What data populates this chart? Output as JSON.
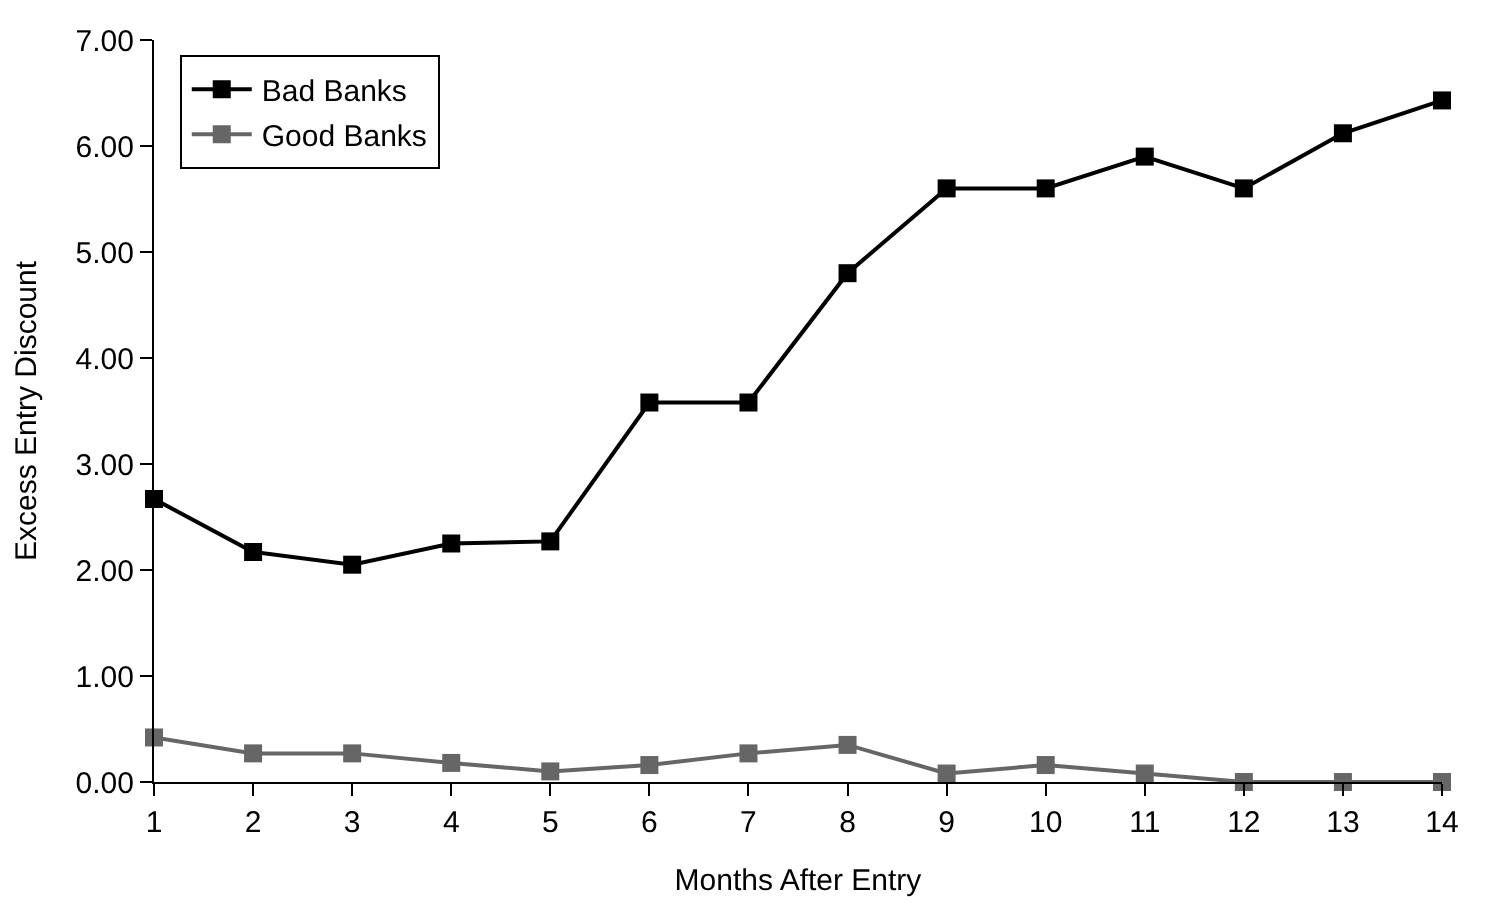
{
  "chart_data": {
    "type": "line",
    "xlabel": "Months After Entry",
    "ylabel": "Excess Entry Discount",
    "x": [
      1,
      2,
      3,
      4,
      5,
      6,
      7,
      8,
      9,
      10,
      11,
      12,
      13,
      14
    ],
    "series": [
      {
        "name": "Bad Banks",
        "color": "#000000",
        "values": [
          2.67,
          2.17,
          2.05,
          2.25,
          2.27,
          3.58,
          3.58,
          4.8,
          5.6,
          5.6,
          5.9,
          5.6,
          6.12,
          6.43
        ]
      },
      {
        "name": "Good Banks",
        "color": "#666666",
        "values": [
          0.42,
          0.27,
          0.27,
          0.18,
          0.1,
          0.16,
          0.27,
          0.35,
          0.08,
          0.16,
          0.08,
          0.0,
          0.0,
          0.0
        ]
      }
    ],
    "xlim": [
      1,
      14
    ],
    "xticks": [
      1,
      2,
      3,
      4,
      5,
      6,
      7,
      8,
      9,
      10,
      11,
      12,
      13,
      14
    ],
    "ylim": [
      0,
      7
    ],
    "yticks": [
      {
        "value": 0,
        "label": "0.00"
      },
      {
        "value": 1,
        "label": "1.00"
      },
      {
        "value": 2,
        "label": "2.00"
      },
      {
        "value": 3,
        "label": "3.00"
      },
      {
        "value": 4,
        "label": "4.00"
      },
      {
        "value": 5,
        "label": "5.00"
      },
      {
        "value": 6,
        "label": "6.00"
      },
      {
        "value": 7,
        "label": "7.00"
      }
    ],
    "legend": "top left",
    "marker": "square",
    "line_style": "solid"
  }
}
